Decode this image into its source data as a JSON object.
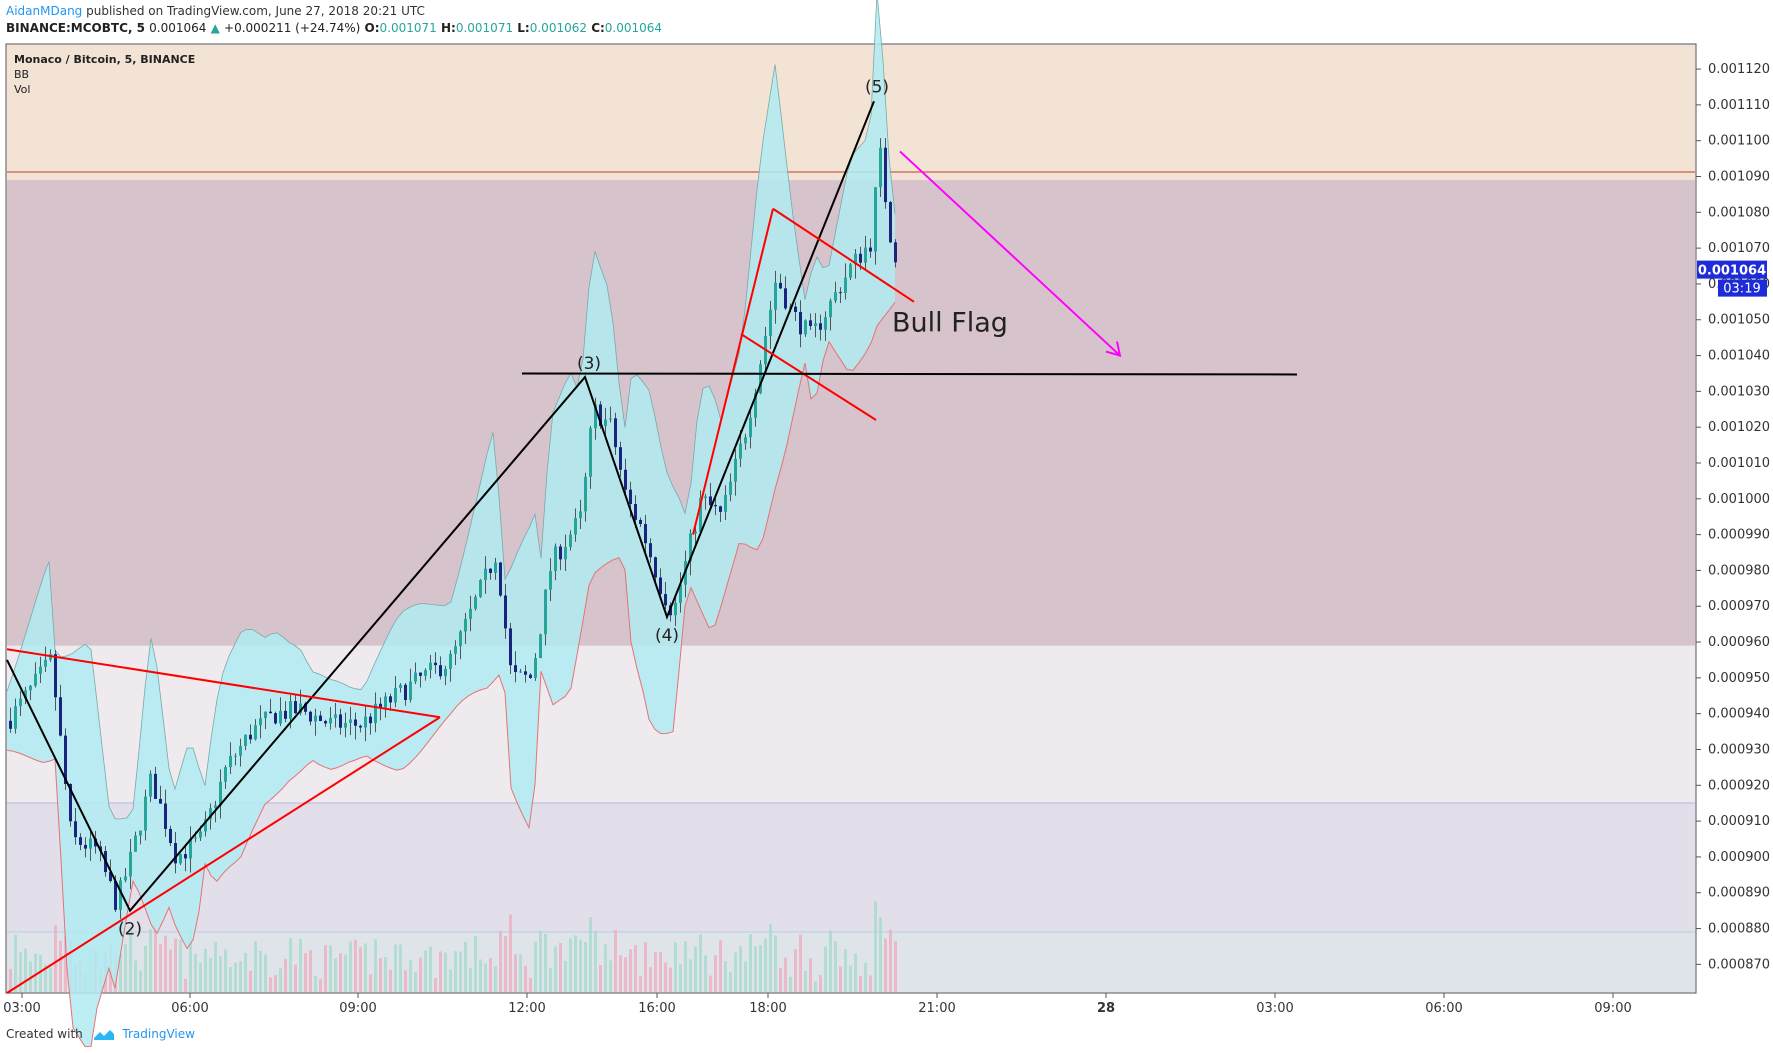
{
  "header": {
    "author": "AidanMDang",
    "published": " published on TradingView.com, June 27, 2018 20:21 UTC",
    "symbol": "BINANCE:MCOBTC, 5",
    "price": "0.001064",
    "change": "+0.000211 (+24.74%)",
    "o_label": "O:",
    "o_val": "0.001071",
    "h_label": "H:",
    "h_val": "0.001071",
    "l_label": "L:",
    "l_val": "0.001062",
    "c_label": "C:",
    "c_val": "0.001064"
  },
  "legend": {
    "title": "Monaco / Bitcoin, 5, BINANCE",
    "indicator1": "BB",
    "indicator2": "Vol"
  },
  "footer": {
    "created": "Created with",
    "brand": "TradingView"
  },
  "colors": {
    "up_candle": "#26a69a",
    "down_candle": "#1a237e",
    "bb_fill": "#b2ebf2",
    "bb_line": "#e57373",
    "resistance_zone": "#d7c3cb",
    "top_zone": "#f2e3d5",
    "price_tag": "#1e2bd8",
    "arrow": "#ff00ff",
    "red_line": "#ff0000"
  },
  "chart_data": {
    "type": "candlestick",
    "ylim": [
      0.000862,
      0.001127
    ],
    "y_ticks": [
      "0.001120",
      "0.001110",
      "0.001100",
      "0.001090",
      "0.001080",
      "0.001070",
      "0.001060",
      "0.001050",
      "0.001040",
      "0.001030",
      "0.001020",
      "0.001010",
      "0.001000",
      "0.000990",
      "0.000980",
      "0.000970",
      "0.000960",
      "0.000950",
      "0.000940",
      "0.000930",
      "0.000920",
      "0.000910",
      "0.000900",
      "0.000890",
      "0.000880",
      "0.000870"
    ],
    "x_ticks": [
      "03:00",
      "06:00",
      "09:00",
      "12:00",
      "16:00",
      "18:00",
      "21:00",
      "28",
      "03:00",
      "06:00",
      "09:00"
    ],
    "current_price": "0.001064",
    "countdown": "03:19",
    "wave_labels": [
      "(2)",
      "(3)",
      "(4)",
      "(5)"
    ],
    "annotation": "Bull Flag",
    "zones": [
      {
        "from": 0.001089,
        "to": 0.001127
      },
      {
        "from": 0.000959,
        "to": 0.001089
      }
    ],
    "wave_points": [
      [
        0.000955,
        0
      ],
      [
        0.000885,
        1
      ],
      [
        0.001034,
        2
      ],
      [
        0.000967,
        3
      ],
      [
        0.001111,
        4
      ]
    ],
    "horizontal_level": 0.001035
  }
}
